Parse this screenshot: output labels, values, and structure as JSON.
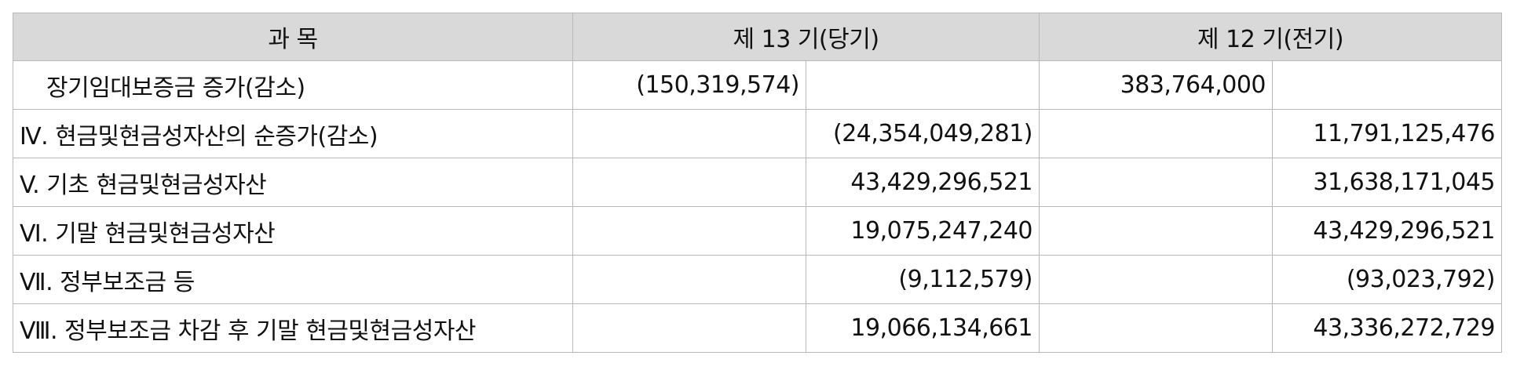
{
  "table": {
    "headers": {
      "subject": "과 목",
      "current": "제 13 기(당기)",
      "previous": "제 12 기(전기)"
    },
    "rows": [
      {
        "label": "장기임대보증금 증가(감소)",
        "indent": true,
        "cur_a": "(150,319,574)",
        "cur_b": "",
        "prev_a": "383,764,000",
        "prev_b": ""
      },
      {
        "label": "Ⅳ. 현금및현금성자산의 순증가(감소)",
        "indent": false,
        "cur_a": "",
        "cur_b": "(24,354,049,281)",
        "prev_a": "",
        "prev_b": "11,791,125,476"
      },
      {
        "label": "V. 기초 현금및현금성자산",
        "indent": false,
        "cur_a": "",
        "cur_b": "43,429,296,521",
        "prev_a": "",
        "prev_b": "31,638,171,045"
      },
      {
        "label": "Ⅵ. 기말 현금및현금성자산",
        "indent": false,
        "cur_a": "",
        "cur_b": "19,075,247,240",
        "prev_a": "",
        "prev_b": "43,429,296,521"
      },
      {
        "label": "Ⅶ. 정부보조금 등",
        "indent": false,
        "cur_a": "",
        "cur_b": "(9,112,579)",
        "prev_a": "",
        "prev_b": "(93,023,792)"
      },
      {
        "label": "Ⅷ. 정부보조금 차감 후 기말 현금및현금성자산",
        "indent": false,
        "cur_a": "",
        "cur_b": "19,066,134,661",
        "prev_a": "",
        "prev_b": "43,336,272,729"
      }
    ]
  }
}
